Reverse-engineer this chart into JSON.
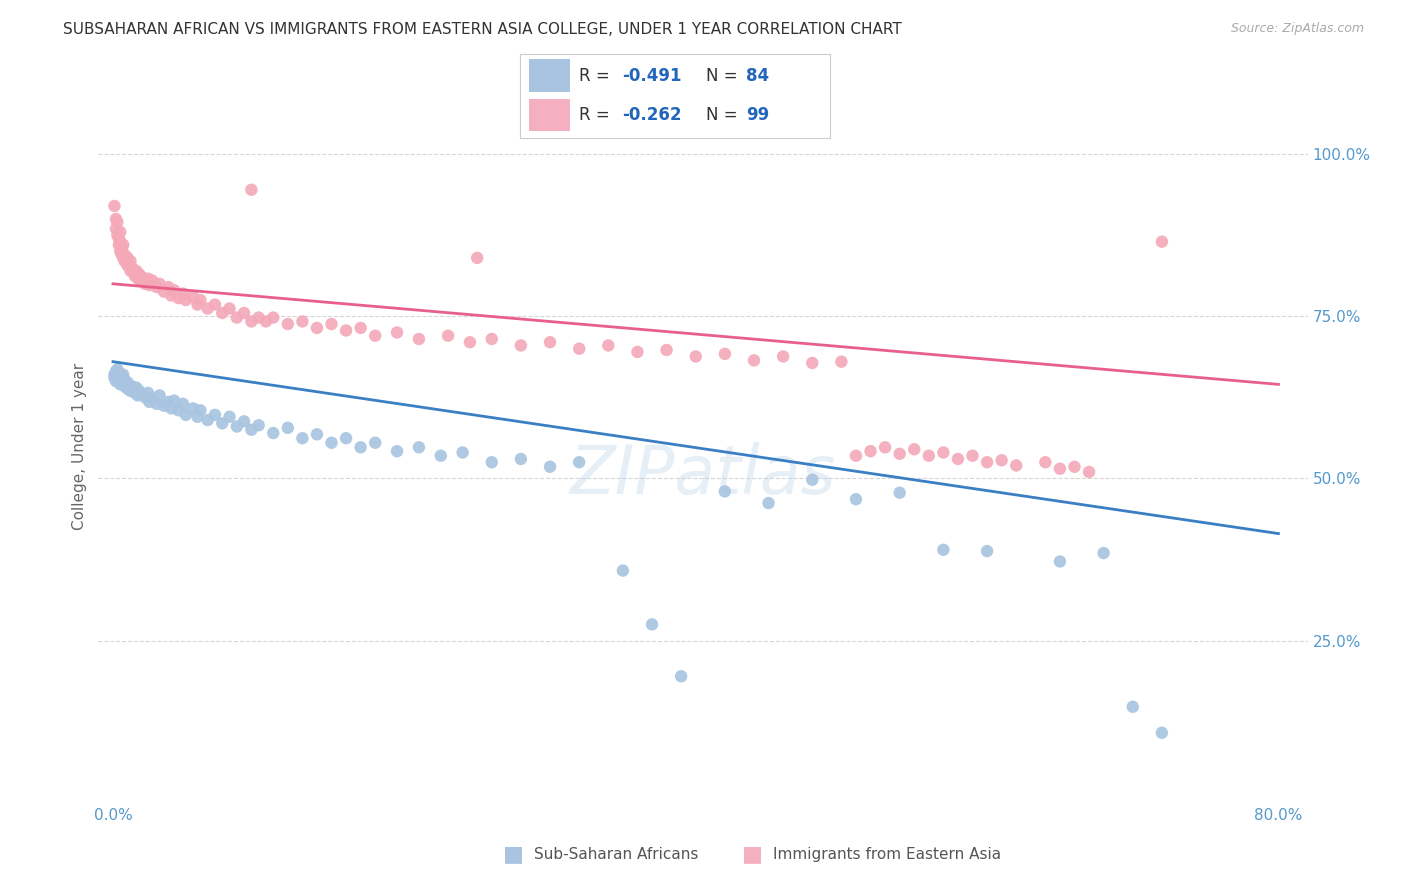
{
  "title": "SUBSAHARAN AFRICAN VS IMMIGRANTS FROM EASTERN ASIA COLLEGE, UNDER 1 YEAR CORRELATION CHART",
  "source": "Source: ZipAtlas.com",
  "ylabel": "College, Under 1 year",
  "blue_R": "-0.491",
  "blue_N": "84",
  "pink_R": "-0.262",
  "pink_N": "99",
  "blue_color": "#a8c4e0",
  "pink_color": "#f4a8b8",
  "blue_line_color": "#3a7fc4",
  "pink_line_color": "#e8608a",
  "legend_blue_color": "#a8c4e0",
  "legend_pink_color": "#f4b0c0",
  "blue_scatter": [
    [
      0.001,
      0.655
    ],
    [
      0.001,
      0.66
    ],
    [
      0.002,
      0.65
    ],
    [
      0.002,
      0.658
    ],
    [
      0.002,
      0.665
    ],
    [
      0.003,
      0.652
    ],
    [
      0.003,
      0.66
    ],
    [
      0.003,
      0.668
    ],
    [
      0.004,
      0.648
    ],
    [
      0.004,
      0.655
    ],
    [
      0.004,
      0.662
    ],
    [
      0.005,
      0.645
    ],
    [
      0.005,
      0.652
    ],
    [
      0.005,
      0.66
    ],
    [
      0.006,
      0.648
    ],
    [
      0.006,
      0.658
    ],
    [
      0.007,
      0.65
    ],
    [
      0.007,
      0.66
    ],
    [
      0.008,
      0.642
    ],
    [
      0.008,
      0.652
    ],
    [
      0.009,
      0.645
    ],
    [
      0.01,
      0.638
    ],
    [
      0.01,
      0.648
    ],
    [
      0.011,
      0.64
    ],
    [
      0.012,
      0.635
    ],
    [
      0.013,
      0.642
    ],
    [
      0.014,
      0.638
    ],
    [
      0.015,
      0.632
    ],
    [
      0.016,
      0.64
    ],
    [
      0.017,
      0.628
    ],
    [
      0.018,
      0.635
    ],
    [
      0.02,
      0.63
    ],
    [
      0.022,
      0.625
    ],
    [
      0.024,
      0.632
    ],
    [
      0.025,
      0.618
    ],
    [
      0.027,
      0.622
    ],
    [
      0.03,
      0.615
    ],
    [
      0.032,
      0.628
    ],
    [
      0.035,
      0.612
    ],
    [
      0.038,
      0.618
    ],
    [
      0.04,
      0.608
    ],
    [
      0.042,
      0.62
    ],
    [
      0.045,
      0.605
    ],
    [
      0.048,
      0.615
    ],
    [
      0.05,
      0.598
    ],
    [
      0.055,
      0.608
    ],
    [
      0.058,
      0.595
    ],
    [
      0.06,
      0.605
    ],
    [
      0.065,
      0.59
    ],
    [
      0.07,
      0.598
    ],
    [
      0.075,
      0.585
    ],
    [
      0.08,
      0.595
    ],
    [
      0.085,
      0.58
    ],
    [
      0.09,
      0.588
    ],
    [
      0.095,
      0.575
    ],
    [
      0.1,
      0.582
    ],
    [
      0.11,
      0.57
    ],
    [
      0.12,
      0.578
    ],
    [
      0.13,
      0.562
    ],
    [
      0.14,
      0.568
    ],
    [
      0.15,
      0.555
    ],
    [
      0.16,
      0.562
    ],
    [
      0.17,
      0.548
    ],
    [
      0.18,
      0.555
    ],
    [
      0.195,
      0.542
    ],
    [
      0.21,
      0.548
    ],
    [
      0.225,
      0.535
    ],
    [
      0.24,
      0.54
    ],
    [
      0.26,
      0.525
    ],
    [
      0.28,
      0.53
    ],
    [
      0.3,
      0.518
    ],
    [
      0.32,
      0.525
    ],
    [
      0.35,
      0.358
    ],
    [
      0.37,
      0.275
    ],
    [
      0.39,
      0.195
    ],
    [
      0.42,
      0.48
    ],
    [
      0.45,
      0.462
    ],
    [
      0.48,
      0.498
    ],
    [
      0.51,
      0.468
    ],
    [
      0.54,
      0.478
    ],
    [
      0.57,
      0.39
    ],
    [
      0.6,
      0.388
    ],
    [
      0.65,
      0.372
    ],
    [
      0.68,
      0.385
    ],
    [
      0.7,
      0.148
    ],
    [
      0.72,
      0.108
    ]
  ],
  "pink_scatter": [
    [
      0.001,
      0.92
    ],
    [
      0.002,
      0.9
    ],
    [
      0.002,
      0.885
    ],
    [
      0.003,
      0.895
    ],
    [
      0.003,
      0.875
    ],
    [
      0.004,
      0.87
    ],
    [
      0.004,
      0.86
    ],
    [
      0.005,
      0.88
    ],
    [
      0.005,
      0.865
    ],
    [
      0.005,
      0.85
    ],
    [
      0.006,
      0.855
    ],
    [
      0.006,
      0.845
    ],
    [
      0.007,
      0.86
    ],
    [
      0.007,
      0.84
    ],
    [
      0.008,
      0.845
    ],
    [
      0.008,
      0.835
    ],
    [
      0.009,
      0.838
    ],
    [
      0.01,
      0.84
    ],
    [
      0.01,
      0.828
    ],
    [
      0.011,
      0.83
    ],
    [
      0.012,
      0.835
    ],
    [
      0.012,
      0.82
    ],
    [
      0.013,
      0.825
    ],
    [
      0.014,
      0.818
    ],
    [
      0.015,
      0.812
    ],
    [
      0.016,
      0.82
    ],
    [
      0.017,
      0.808
    ],
    [
      0.018,
      0.815
    ],
    [
      0.019,
      0.805
    ],
    [
      0.02,
      0.81
    ],
    [
      0.022,
      0.8
    ],
    [
      0.024,
      0.808
    ],
    [
      0.025,
      0.798
    ],
    [
      0.027,
      0.805
    ],
    [
      0.03,
      0.795
    ],
    [
      0.032,
      0.8
    ],
    [
      0.035,
      0.788
    ],
    [
      0.038,
      0.795
    ],
    [
      0.04,
      0.782
    ],
    [
      0.042,
      0.79
    ],
    [
      0.045,
      0.778
    ],
    [
      0.048,
      0.785
    ],
    [
      0.05,
      0.775
    ],
    [
      0.055,
      0.78
    ],
    [
      0.058,
      0.768
    ],
    [
      0.06,
      0.775
    ],
    [
      0.065,
      0.762
    ],
    [
      0.07,
      0.768
    ],
    [
      0.075,
      0.755
    ],
    [
      0.08,
      0.762
    ],
    [
      0.085,
      0.748
    ],
    [
      0.09,
      0.755
    ],
    [
      0.095,
      0.742
    ],
    [
      0.1,
      0.748
    ],
    [
      0.105,
      0.742
    ],
    [
      0.11,
      0.748
    ],
    [
      0.12,
      0.738
    ],
    [
      0.13,
      0.742
    ],
    [
      0.14,
      0.732
    ],
    [
      0.15,
      0.738
    ],
    [
      0.16,
      0.728
    ],
    [
      0.17,
      0.732
    ],
    [
      0.18,
      0.72
    ],
    [
      0.195,
      0.725
    ],
    [
      0.21,
      0.715
    ],
    [
      0.23,
      0.72
    ],
    [
      0.245,
      0.71
    ],
    [
      0.26,
      0.715
    ],
    [
      0.28,
      0.705
    ],
    [
      0.3,
      0.71
    ],
    [
      0.32,
      0.7
    ],
    [
      0.34,
      0.705
    ],
    [
      0.36,
      0.695
    ],
    [
      0.38,
      0.698
    ],
    [
      0.4,
      0.688
    ],
    [
      0.42,
      0.692
    ],
    [
      0.44,
      0.682
    ],
    [
      0.46,
      0.688
    ],
    [
      0.48,
      0.678
    ],
    [
      0.5,
      0.68
    ],
    [
      0.51,
      0.535
    ],
    [
      0.52,
      0.542
    ],
    [
      0.53,
      0.548
    ],
    [
      0.54,
      0.538
    ],
    [
      0.55,
      0.545
    ],
    [
      0.56,
      0.535
    ],
    [
      0.57,
      0.54
    ],
    [
      0.58,
      0.53
    ],
    [
      0.59,
      0.535
    ],
    [
      0.6,
      0.525
    ],
    [
      0.61,
      0.528
    ],
    [
      0.62,
      0.52
    ],
    [
      0.64,
      0.525
    ],
    [
      0.65,
      0.515
    ],
    [
      0.66,
      0.518
    ],
    [
      0.67,
      0.51
    ],
    [
      0.095,
      0.945
    ],
    [
      0.25,
      0.84
    ],
    [
      0.72,
      0.865
    ]
  ],
  "blue_line_x": [
    0.0,
    0.8
  ],
  "blue_line_y": [
    0.68,
    0.415
  ],
  "pink_line_x": [
    0.0,
    0.8
  ],
  "pink_line_y": [
    0.8,
    0.645
  ],
  "xlim": [
    -0.01,
    0.82
  ],
  "ylim": [
    0.0,
    1.1
  ],
  "y_ticks": [
    0.25,
    0.5,
    0.75,
    1.0
  ],
  "x_tick_left_label": "0.0%",
  "x_tick_right_label": "80.0%",
  "watermark": "ZIPatlas",
  "bg_color": "#ffffff",
  "title_fontsize": 11,
  "tick_color": "#5599cc",
  "grid_color": "#cccccc",
  "scatter_size": 80
}
